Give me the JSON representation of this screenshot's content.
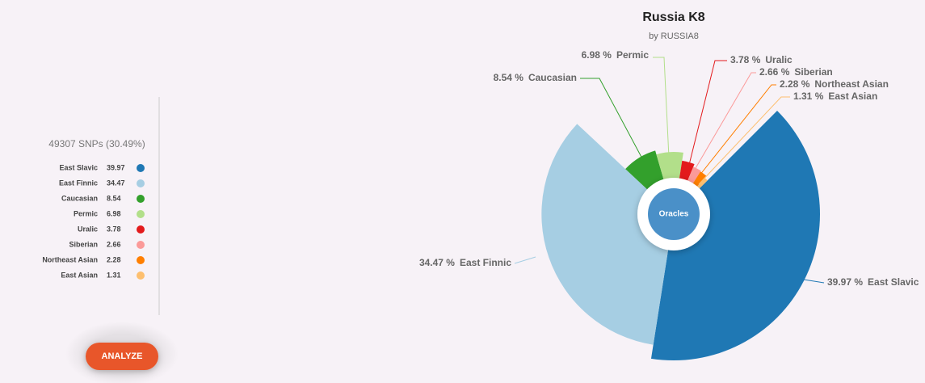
{
  "sidebar": {
    "snps": "49307 SNPs (30.49%)",
    "button": "ANALYZE"
  },
  "center_label": "Oracles",
  "chart_data": {
    "type": "pie",
    "title": "Russia K8",
    "subtitle": "by RUSSIA8",
    "categories": [
      "East Slavic",
      "East Finnic",
      "Caucasian",
      "Permic",
      "Uralic",
      "Siberian",
      "Northeast Asian",
      "East Asian"
    ],
    "values": [
      39.97,
      34.47,
      8.54,
      6.98,
      3.78,
      2.66,
      2.28,
      1.31
    ],
    "value_labels": [
      "39.97 %",
      "34.47 %",
      "8.54 %",
      "6.98 %",
      "3.78 %",
      "2.66 %",
      "2.28 %",
      "1.31 %"
    ],
    "colors": [
      "#1f78b4",
      "#a6cee3",
      "#33a02c",
      "#b2df8a",
      "#e31a1c",
      "#fb9a99",
      "#ff7f00",
      "#fdbf6f"
    ]
  }
}
